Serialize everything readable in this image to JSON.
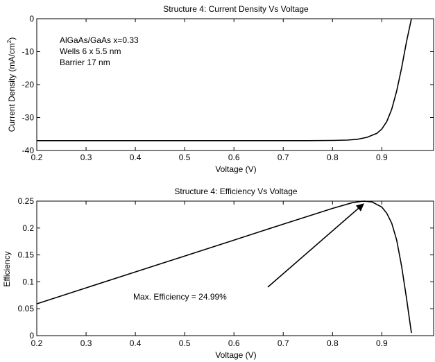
{
  "chart_data": [
    {
      "type": "line",
      "title": "Structure 4: Current Density Vs Voltage",
      "xlabel": "Voltage (V)",
      "ylabel_main": "Current Density (mA/cm",
      "ylabel_sup": "2",
      "ylabel_close": ")",
      "xlim": [
        0.2,
        0.95
      ],
      "ylim": [
        -40,
        0
      ],
      "x_ticks": [
        "0.2",
        "0.3",
        "0.4",
        "0.5",
        "0.6",
        "0.7",
        "0.8",
        "0.9"
      ],
      "y_ticks": [
        "0",
        "-10",
        "-20",
        "-30",
        "-40"
      ],
      "grid": false,
      "annotations": [
        "AlGaAs/GaAs x=0.33",
        "Wells 6 x 5.5 nm",
        "Barrier 17 nm"
      ],
      "series": [
        {
          "x": [
            0.2,
            0.4,
            0.6,
            0.75,
            0.8,
            0.83,
            0.85,
            0.87,
            0.89,
            0.9,
            0.91,
            0.92,
            0.93,
            0.94,
            0.95,
            0.96
          ],
          "y": [
            -37.0,
            -37.0,
            -37.0,
            -37.0,
            -36.95,
            -36.85,
            -36.6,
            -36.0,
            -34.8,
            -33.5,
            -31.2,
            -27.5,
            -22.0,
            -15.0,
            -7.0,
            0.0
          ]
        }
      ]
    },
    {
      "type": "line",
      "title": "Structure 4: Efficiency Vs Voltage",
      "xlabel": "Voltage (V)",
      "ylabel": "Efficiency",
      "xlim": [
        0.2,
        0.95
      ],
      "ylim": [
        0,
        0.25
      ],
      "x_ticks": [
        "0.2",
        "0.3",
        "0.4",
        "0.5",
        "0.6",
        "0.7",
        "0.8",
        "0.9"
      ],
      "y_ticks": [
        "0.25",
        "0.2",
        "0.15",
        "0.1",
        "0.05",
        "0"
      ],
      "grid": false,
      "annotation": "Max. Efficiency = 24.99%",
      "peak": {
        "x": 0.865,
        "y": 0.2499
      },
      "series": [
        {
          "x": [
            0.2,
            0.3,
            0.4,
            0.5,
            0.6,
            0.7,
            0.8,
            0.84,
            0.86,
            0.865,
            0.88,
            0.9,
            0.91,
            0.92,
            0.93,
            0.94,
            0.95,
            0.96
          ],
          "y": [
            0.0592,
            0.0888,
            0.1184,
            0.148,
            0.1776,
            0.2072,
            0.2365,
            0.2471,
            0.2497,
            0.2499,
            0.2485,
            0.239,
            0.2275,
            0.209,
            0.178,
            0.1295,
            0.07,
            0.005
          ]
        }
      ]
    }
  ]
}
